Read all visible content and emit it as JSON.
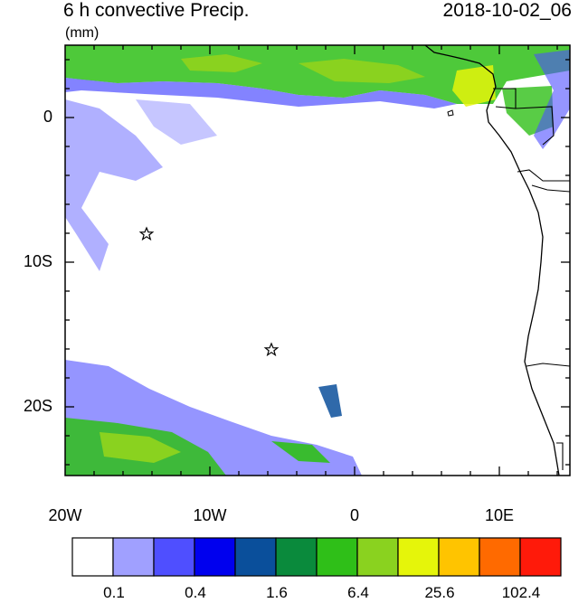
{
  "header": {
    "title": "6 h convective Precip.",
    "units": "(mm)",
    "valid_time": "2018-10-02_06"
  },
  "axes": {
    "lat_labels": [
      "0",
      "10S",
      "20S"
    ],
    "lon_labels": [
      "20W",
      "10W",
      "0",
      "10E"
    ]
  },
  "colorbar": {
    "colors": [
      "#ffffff",
      "#a0a0ff",
      "#4f4fff",
      "#0000ee",
      "#0a4f9b",
      "#0a8a3c",
      "#2fbf18",
      "#8ad21f",
      "#e5f50a",
      "#ffc400",
      "#ff6a00",
      "#ff1a0a"
    ],
    "labels": [
      "0.1",
      "0.4",
      "1.6",
      "6.4",
      "25.6",
      "102.4"
    ]
  },
  "markers": {
    "symbol": "star",
    "count": 2
  }
}
